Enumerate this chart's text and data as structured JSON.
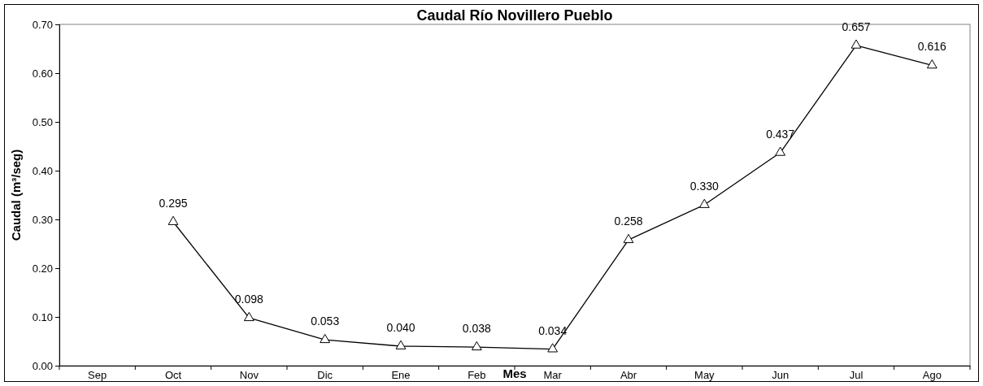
{
  "chart_data": {
    "type": "line",
    "title": "Caudal Río Novillero Pueblo",
    "xlabel": "Mes",
    "ylabel": "Caudal (m³/seg)",
    "categories": [
      "Sep",
      "Oct",
      "Nov",
      "Dic",
      "Ene",
      "Feb",
      "Mar",
      "Abr",
      "May",
      "Jun",
      "Jul",
      "Ago"
    ],
    "series": [
      {
        "color": "#000000",
        "values": [
          null,
          0.295,
          0.098,
          0.053,
          0.04,
          0.038,
          0.034,
          0.258,
          0.33,
          0.437,
          0.657,
          0.616
        ],
        "value_labels": [
          null,
          "0.295",
          "0.098",
          "0.053",
          "0.040",
          "0.038",
          "0.034",
          "0.258",
          "0.330",
          "0.437",
          "0.657",
          "0.616"
        ]
      }
    ],
    "ylim": [
      0,
      0.7
    ],
    "yticks": [
      {
        "value": 0,
        "label": "0.00"
      },
      {
        "value": 0.1,
        "label": "0.10"
      },
      {
        "value": 0.2,
        "label": "0.20"
      },
      {
        "value": 0.3,
        "label": "0.30"
      },
      {
        "value": 0.4,
        "label": "0.40"
      },
      {
        "value": 0.5,
        "label": "0.50"
      },
      {
        "value": 0.6,
        "label": "0.60"
      },
      {
        "value": 0.7,
        "label": "0.70"
      }
    ],
    "marker": "triangle",
    "line_style": "solid",
    "grid": false
  }
}
